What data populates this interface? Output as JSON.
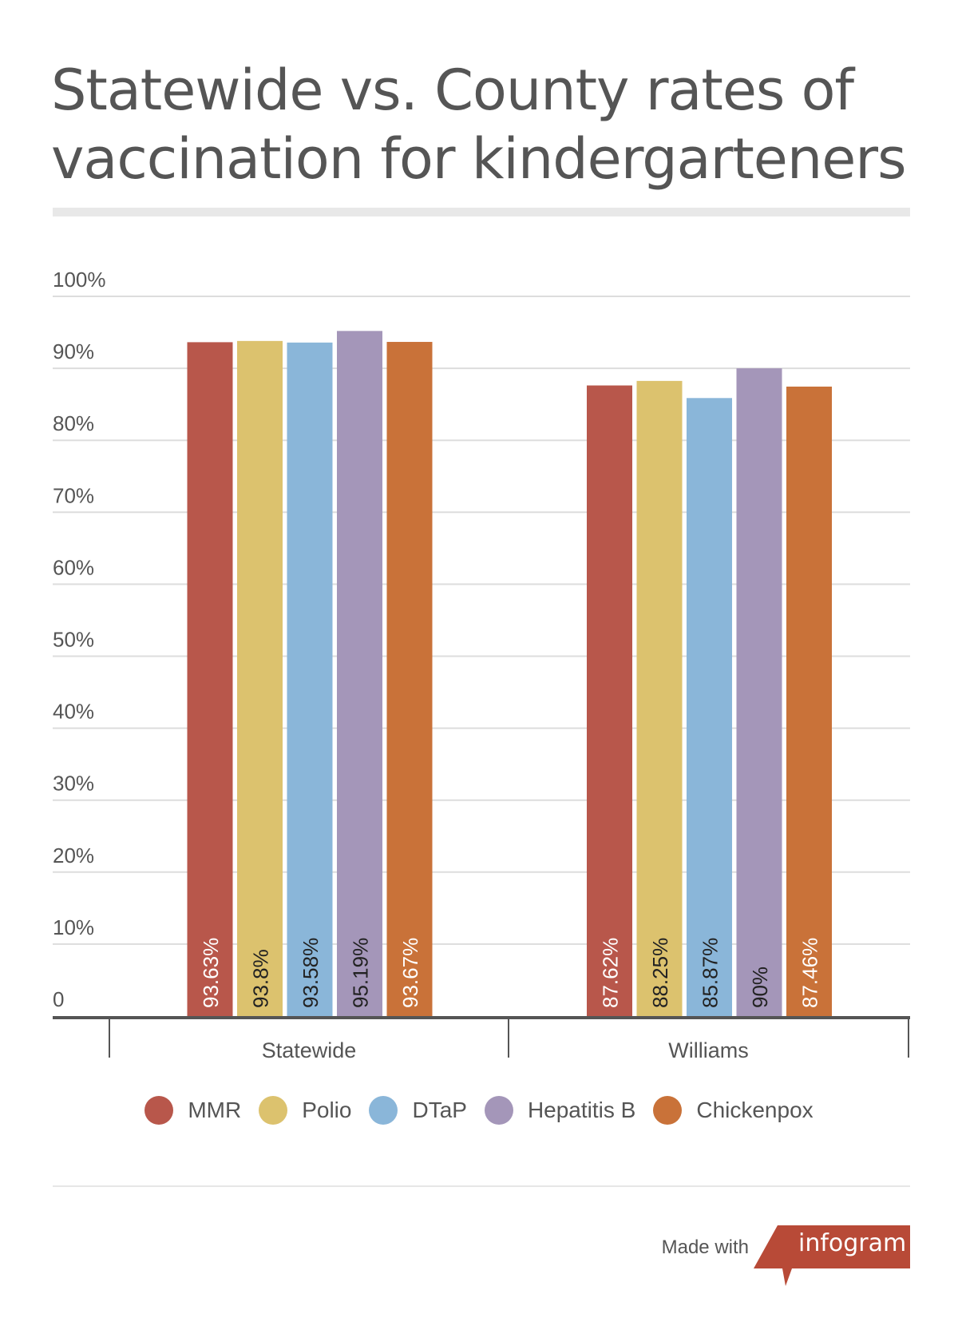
{
  "title": "Statewide vs. County rates of vaccination for kindergarteners",
  "colors": {
    "MMR": "#b8574b",
    "Polio": "#dcc26e",
    "DTaP": "#8ab6d9",
    "Hepatitis B": "#a496b9",
    "Chickenpox": "#c97239",
    "axis": "#555555",
    "grid": "#dddddd",
    "badge": "#b84a37"
  },
  "chart_data": {
    "type": "bar",
    "categories": [
      "Statewide",
      "Williams"
    ],
    "series": [
      {
        "name": "MMR",
        "values": [
          93.63,
          87.62
        ],
        "labels": [
          "93.63%",
          "87.62%"
        ]
      },
      {
        "name": "Polio",
        "values": [
          93.8,
          88.25
        ],
        "labels": [
          "93.8%",
          "88.25%"
        ]
      },
      {
        "name": "DTaP",
        "values": [
          93.58,
          85.87
        ],
        "labels": [
          "93.58%",
          "85.87%"
        ]
      },
      {
        "name": "Hepatitis B",
        "values": [
          95.19,
          90
        ],
        "labels": [
          "95.19%",
          "90%"
        ]
      },
      {
        "name": "Chickenpox",
        "values": [
          93.67,
          87.46
        ],
        "labels": [
          "93.67%",
          "87.46%"
        ]
      }
    ],
    "ylim": [
      0,
      100
    ],
    "yticks": [
      0,
      10,
      20,
      30,
      40,
      50,
      60,
      70,
      80,
      90,
      100
    ],
    "ytick_labels": [
      "0",
      "10%",
      "20%",
      "30%",
      "40%",
      "50%",
      "60%",
      "70%",
      "80%",
      "90%",
      "100%"
    ],
    "grid": true,
    "legend": "bottom"
  },
  "footer": {
    "made_with": "Made with",
    "brand": "infogram"
  }
}
